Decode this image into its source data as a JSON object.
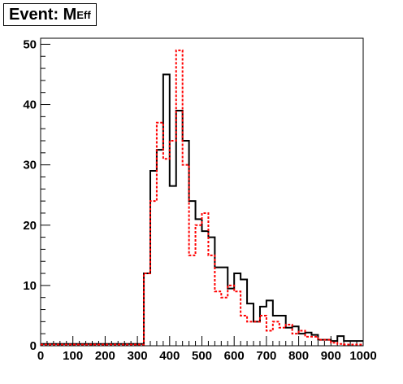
{
  "title": {
    "main": "Event: M",
    "sub": "Eff"
  },
  "chart_data": {
    "type": "histogram",
    "title": "Event: M_Eff",
    "xlabel": "",
    "ylabel": "",
    "xlim": [
      0,
      1000
    ],
    "ylim": [
      0,
      51
    ],
    "x_ticks": [
      0,
      100,
      200,
      300,
      400,
      500,
      600,
      700,
      800,
      900,
      1000
    ],
    "y_ticks": [
      0,
      10,
      20,
      30,
      40,
      50
    ],
    "bin_width": 20,
    "bin_edges_start": 0,
    "grid": false,
    "legend": "none",
    "series": [
      {
        "color": "#000000",
        "style": "solid",
        "values": [
          0.3,
          0.3,
          0.3,
          0.3,
          0.3,
          0.3,
          0.3,
          0.3,
          0.3,
          0.3,
          0.3,
          0.3,
          0.3,
          0.3,
          0.3,
          0.3,
          12,
          29,
          32.5,
          45,
          26.5,
          39,
          34,
          24,
          21,
          19,
          18,
          13,
          13,
          9.5,
          12,
          11,
          7,
          4,
          6.5,
          7.5,
          5,
          5,
          3,
          3.2,
          2,
          2.2,
          1.8,
          1,
          1,
          0.8,
          1.6,
          0.8,
          0.8,
          0.8
        ]
      },
      {
        "color": "#ff0000",
        "style": "dashed",
        "values": [
          0.2,
          0.2,
          0.2,
          0.2,
          0.2,
          0.2,
          0.2,
          0.2,
          0.2,
          0.2,
          0.2,
          0.2,
          0.2,
          0.2,
          0.2,
          0.2,
          12,
          24,
          37,
          31,
          34,
          49,
          30,
          15,
          20,
          22,
          15,
          9,
          8,
          10,
          9,
          5,
          4,
          4,
          5,
          2.5,
          4,
          3,
          3.5,
          2,
          2.5,
          1.5,
          1.5,
          1,
          1,
          0.5,
          0.3,
          0.2,
          0.2,
          0.2
        ]
      }
    ]
  }
}
